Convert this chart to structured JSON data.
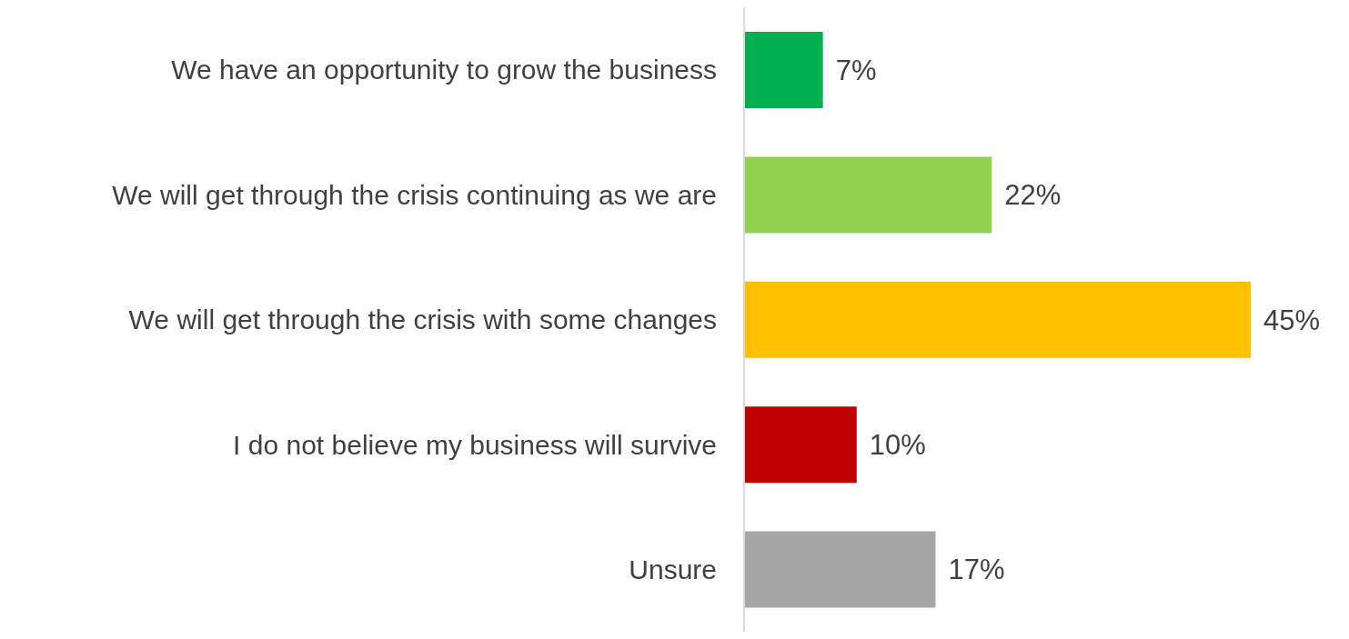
{
  "chart_data": {
    "type": "bar",
    "orientation": "horizontal",
    "categories": [
      "We have an opportunity to grow the business",
      "We will get through the crisis continuing as we are",
      "We will get through the crisis with some changes",
      "I do not believe my business will survive",
      "Unsure"
    ],
    "values": [
      7,
      22,
      45,
      10,
      17
    ],
    "colors": [
      "#00b050",
      "#92d050",
      "#ffc000",
      "#c00000",
      "#a6a6a6"
    ],
    "value_labels": [
      "7%",
      "22%",
      "45%",
      "10%",
      "17%"
    ],
    "grid": false,
    "legend": false
  }
}
